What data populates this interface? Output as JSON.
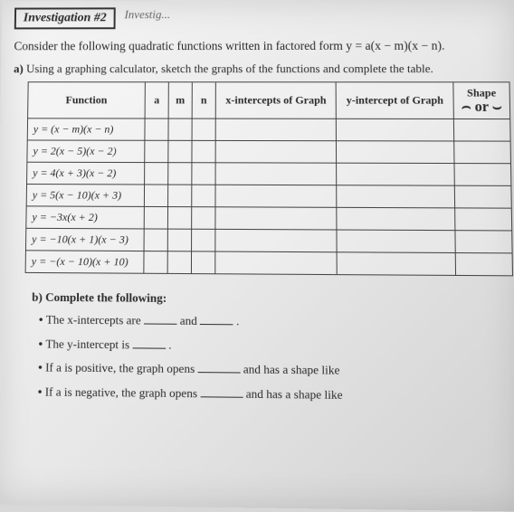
{
  "header": {
    "box_label": "Investigation #2",
    "box_right": "Investig..."
  },
  "intro": "Consider the following quadratic functions written in factored form y = a(x − m)(x − n).",
  "part_a": {
    "label": "a)",
    "text": "Using a graphing calculator, sketch the graphs of the functions and complete the table."
  },
  "table": {
    "headers": {
      "func": "Function",
      "a": "a",
      "m": "m",
      "n": "n",
      "xint": "x-intercepts of Graph",
      "yint": "y-intercept of Graph",
      "shape": "Shape",
      "shape_sub": "⌢ or ⌣"
    },
    "rows": [
      {
        "func": "y = (x − m)(x − n)"
      },
      {
        "func": "y = 2(x − 5)(x − 2)"
      },
      {
        "func": "y = 4(x + 3)(x − 2)"
      },
      {
        "func": "y = 5(x − 10)(x + 3)"
      },
      {
        "func": "y = −3x(x + 2)"
      },
      {
        "func": "y = −10(x + 1)(x − 3)"
      },
      {
        "func": "y = −(x − 10)(x + 10)"
      }
    ]
  },
  "part_b": {
    "label": "b)",
    "title": "Complete the following:",
    "items": [
      {
        "pre": "The x-intercepts are",
        "mid": "and",
        "post": "."
      },
      {
        "pre": "The y-intercept is",
        "post": "."
      },
      {
        "pre": "If a is positive, the graph opens",
        "post": "and has a shape like"
      },
      {
        "pre": "If a is negative, the graph opens",
        "post": "and has a shape like"
      }
    ]
  }
}
